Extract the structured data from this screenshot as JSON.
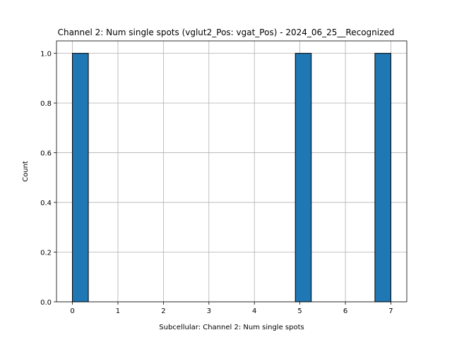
{
  "chart_data": {
    "type": "bar",
    "title": "Channel 2: Num single spots (vglut2_Pos: vgat_Pos) - 2024_06_25__Recognized",
    "xlabel": "Subcellular: Channel 2: Num single spots",
    "ylabel": "Count",
    "xlim": [
      -0.35,
      7.35
    ],
    "ylim": [
      0,
      1.05
    ],
    "x_ticks": [
      0,
      1,
      2,
      3,
      4,
      5,
      6,
      7
    ],
    "y_ticks": [
      0.0,
      0.2,
      0.4,
      0.6,
      0.8,
      1.0
    ],
    "x_tick_labels": [
      "0",
      "1",
      "2",
      "3",
      "4",
      "5",
      "6",
      "7"
    ],
    "y_tick_labels": [
      "0.0",
      "0.2",
      "0.4",
      "0.6",
      "0.8",
      "1.0"
    ],
    "grid": true,
    "bar_color": "#1f77b4",
    "edge_color": "#000000",
    "bins": [
      {
        "start": 0.0,
        "end": 0.35,
        "count": 1
      },
      {
        "start": 4.9,
        "end": 5.25,
        "count": 1
      },
      {
        "start": 6.65,
        "end": 7.0,
        "count": 1
      }
    ]
  }
}
